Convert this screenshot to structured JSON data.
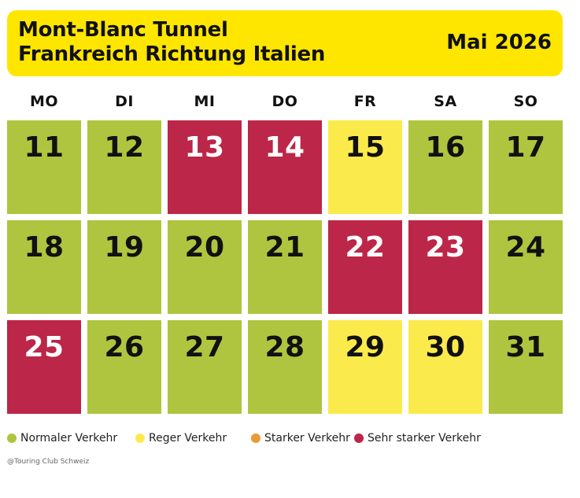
{
  "header": {
    "title_line1": "Mont-Blanc Tunnel",
    "title_line2": "Frankreich Richtung Italien",
    "month": "Mai 2026",
    "background_color": "#ffe600"
  },
  "weekdays": [
    "MO",
    "DI",
    "MI",
    "DO",
    "FR",
    "SA",
    "SO"
  ],
  "weeks": [
    [
      {
        "day": "11",
        "level": "normal"
      },
      {
        "day": "12",
        "level": "normal"
      },
      {
        "day": "13",
        "level": "sehr"
      },
      {
        "day": "14",
        "level": "sehr"
      },
      {
        "day": "15",
        "level": "reger"
      },
      {
        "day": "16",
        "level": "normal"
      },
      {
        "day": "17",
        "level": "normal"
      }
    ],
    [
      {
        "day": "18",
        "level": "normal"
      },
      {
        "day": "19",
        "level": "normal"
      },
      {
        "day": "20",
        "level": "normal"
      },
      {
        "day": "21",
        "level": "normal"
      },
      {
        "day": "22",
        "level": "sehr"
      },
      {
        "day": "23",
        "level": "sehr"
      },
      {
        "day": "24",
        "level": "normal"
      }
    ],
    [
      {
        "day": "25",
        "level": "sehr"
      },
      {
        "day": "26",
        "level": "normal"
      },
      {
        "day": "27",
        "level": "normal"
      },
      {
        "day": "28",
        "level": "normal"
      },
      {
        "day": "29",
        "level": "reger"
      },
      {
        "day": "30",
        "level": "reger"
      },
      {
        "day": "31",
        "level": "normal"
      }
    ]
  ],
  "legend": [
    {
      "key": "normal",
      "label": "Normaler Verkehr",
      "color": "#afc53f"
    },
    {
      "key": "reger",
      "label": "Reger Verkehr",
      "color": "#fbea4c"
    },
    {
      "key": "starker",
      "label": "Starker Verkehr",
      "color": "#eb9a35"
    },
    {
      "key": "sehr",
      "label": "Sehr starker Verkehr",
      "color": "#bc2648"
    }
  ],
  "footer": {
    "credit": "@Touring Club Schweiz"
  }
}
